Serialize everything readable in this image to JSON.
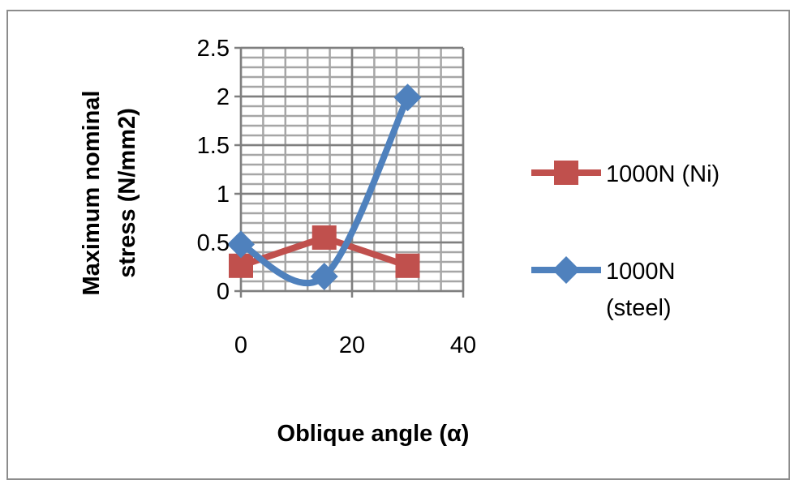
{
  "chart_data": {
    "type": "line",
    "title": "",
    "xlabel": "Oblique angle (α)",
    "ylabel": "Maximum nominal stress (N/mm2)",
    "ylabel_lines": [
      "Maximum nominal",
      "stress (N/mm2)"
    ],
    "xlim": [
      0,
      40
    ],
    "ylim": [
      0,
      2.5
    ],
    "xticks": [
      0,
      20,
      40
    ],
    "xtick_labels": [
      "0",
      "20",
      "40"
    ],
    "yticks": [
      0,
      0.5,
      1,
      1.5,
      2,
      2.5
    ],
    "ytick_labels": [
      "0",
      "0.5",
      "1",
      "1.5",
      "2",
      "2.5"
    ],
    "grid": true,
    "legend_position": "right",
    "x": [
      0,
      15,
      30
    ],
    "series": [
      {
        "name": "1000N (Ni)",
        "legend_lines": [
          "1000N (Ni)"
        ],
        "values": [
          0.26,
          0.55,
          0.26
        ],
        "color": "#c0504d",
        "marker": "square",
        "smooth": false
      },
      {
        "name": "1000N (steel)",
        "legend_lines": [
          "1000N",
          "(steel)"
        ],
        "values": [
          0.48,
          0.15,
          1.99
        ],
        "color": "#4f81bd",
        "marker": "diamond",
        "smooth": true
      }
    ]
  }
}
